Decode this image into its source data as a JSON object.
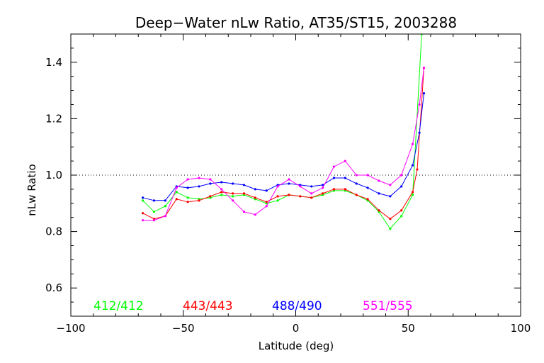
{
  "chart_data": {
    "type": "line",
    "title": "Deep−Water nLw Ratio, AT35/ST15, 2003288",
    "xlabel": "Latitude (deg)",
    "ylabel": "nLw Ratio",
    "xlim": [
      -100,
      100
    ],
    "ylim": [
      0.5,
      1.5
    ],
    "x_ticks": [
      -100,
      -50,
      0,
      50,
      100
    ],
    "x_tick_labels": [
      "−100",
      "−50",
      "0",
      "50",
      "100"
    ],
    "y_ticks": [
      0.6,
      0.8,
      1.0,
      1.2,
      1.4
    ],
    "y_tick_labels": [
      "0.6",
      "0.8",
      "1.0",
      "1.2",
      "1.4"
    ],
    "reference_line": {
      "y": 1.0,
      "style": "dotted"
    },
    "grid": false,
    "legend_position": "bottom",
    "series": [
      {
        "name": "412/412",
        "color": "#00ff00",
        "points": [
          [
            -68,
            0.91
          ],
          [
            -63,
            0.87
          ],
          [
            -58,
            0.89
          ],
          [
            -53,
            0.94
          ],
          [
            -48,
            0.92
          ],
          [
            -43,
            0.915
          ],
          [
            -38,
            0.92
          ],
          [
            -33,
            0.93
          ],
          [
            -28,
            0.925
          ],
          [
            -23,
            0.93
          ],
          [
            -18,
            0.915
          ],
          [
            -13,
            0.9
          ],
          [
            -8,
            0.91
          ],
          [
            -3,
            0.93
          ],
          [
            2,
            0.925
          ],
          [
            7,
            0.92
          ],
          [
            12,
            0.93
          ],
          [
            17,
            0.945
          ],
          [
            22,
            0.945
          ],
          [
            27,
            0.93
          ],
          [
            32,
            0.91
          ],
          [
            37,
            0.87
          ],
          [
            42,
            0.81
          ],
          [
            47,
            0.855
          ],
          [
            52,
            0.93
          ],
          [
            56,
            1.5
          ]
        ]
      },
      {
        "name": "443/443",
        "color": "#ff0000",
        "points": [
          [
            -68,
            0.865
          ],
          [
            -63,
            0.845
          ],
          [
            -58,
            0.855
          ],
          [
            -53,
            0.915
          ],
          [
            -48,
            0.905
          ],
          [
            -43,
            0.91
          ],
          [
            -38,
            0.925
          ],
          [
            -33,
            0.94
          ],
          [
            -28,
            0.935
          ],
          [
            -23,
            0.935
          ],
          [
            -18,
            0.92
          ],
          [
            -13,
            0.905
          ],
          [
            -8,
            0.925
          ],
          [
            -3,
            0.93
          ],
          [
            2,
            0.925
          ],
          [
            7,
            0.92
          ],
          [
            12,
            0.935
          ],
          [
            17,
            0.95
          ],
          [
            22,
            0.95
          ],
          [
            27,
            0.93
          ],
          [
            32,
            0.915
          ],
          [
            37,
            0.875
          ],
          [
            42,
            0.845
          ],
          [
            47,
            0.875
          ],
          [
            52,
            0.94
          ],
          [
            54,
            1.02
          ],
          [
            57,
            1.38
          ]
        ]
      },
      {
        "name": "488/490",
        "color": "#0000ff",
        "points": [
          [
            -68,
            0.92
          ],
          [
            -63,
            0.91
          ],
          [
            -58,
            0.91
          ],
          [
            -53,
            0.96
          ],
          [
            -48,
            0.955
          ],
          [
            -43,
            0.96
          ],
          [
            -38,
            0.97
          ],
          [
            -33,
            0.975
          ],
          [
            -28,
            0.97
          ],
          [
            -23,
            0.965
          ],
          [
            -18,
            0.95
          ],
          [
            -13,
            0.945
          ],
          [
            -8,
            0.965
          ],
          [
            -3,
            0.97
          ],
          [
            2,
            0.965
          ],
          [
            7,
            0.96
          ],
          [
            12,
            0.965
          ],
          [
            17,
            0.99
          ],
          [
            22,
            0.99
          ],
          [
            27,
            0.97
          ],
          [
            32,
            0.955
          ],
          [
            37,
            0.935
          ],
          [
            42,
            0.925
          ],
          [
            47,
            0.96
          ],
          [
            52,
            1.035
          ],
          [
            55,
            1.15
          ],
          [
            57,
            1.29
          ]
        ]
      },
      {
        "name": "551/555",
        "color": "#ff00ff",
        "points": [
          [
            -68,
            0.84
          ],
          [
            -63,
            0.84
          ],
          [
            -58,
            0.855
          ],
          [
            -53,
            0.955
          ],
          [
            -48,
            0.985
          ],
          [
            -43,
            0.99
          ],
          [
            -38,
            0.985
          ],
          [
            -33,
            0.95
          ],
          [
            -28,
            0.91
          ],
          [
            -23,
            0.87
          ],
          [
            -18,
            0.86
          ],
          [
            -13,
            0.89
          ],
          [
            -8,
            0.96
          ],
          [
            -3,
            0.985
          ],
          [
            2,
            0.96
          ],
          [
            7,
            0.935
          ],
          [
            12,
            0.955
          ],
          [
            17,
            1.03
          ],
          [
            22,
            1.05
          ],
          [
            27,
            1.0
          ],
          [
            32,
            1.0
          ],
          [
            37,
            0.98
          ],
          [
            42,
            0.965
          ],
          [
            47,
            1.0
          ],
          [
            52,
            1.11
          ],
          [
            55,
            1.25
          ],
          [
            57,
            1.38
          ]
        ]
      }
    ]
  }
}
